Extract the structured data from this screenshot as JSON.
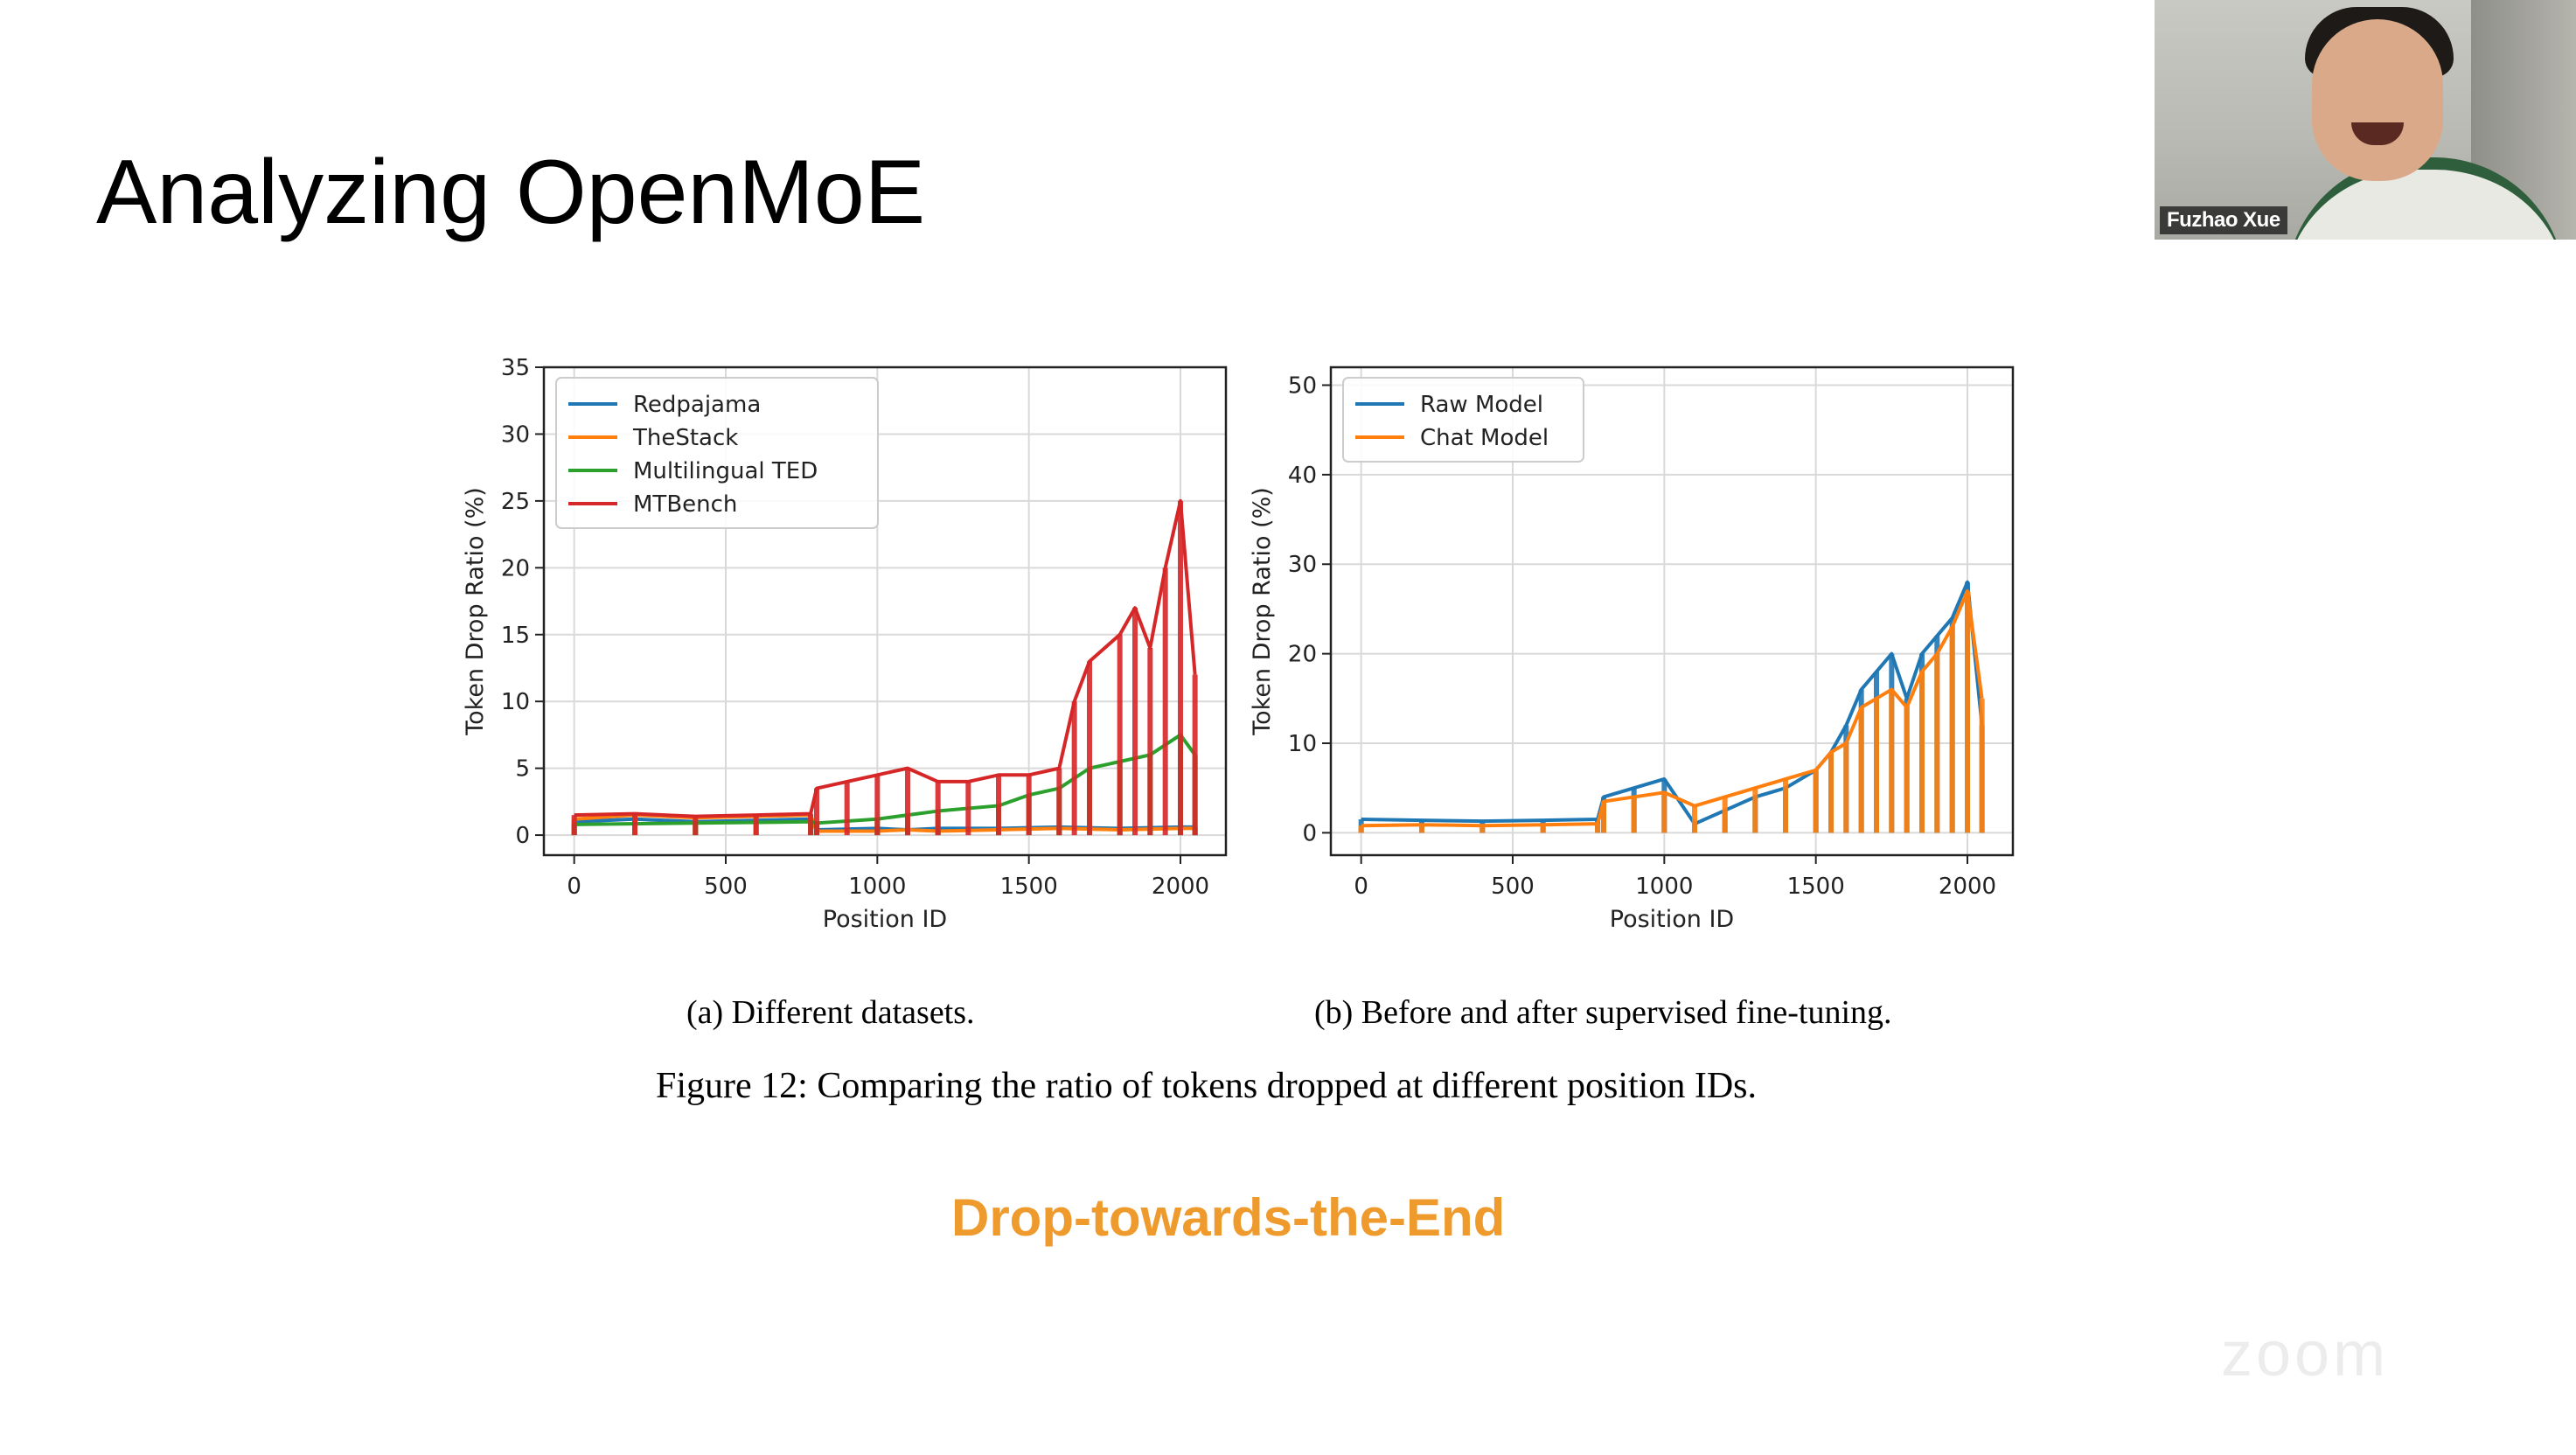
{
  "slide": {
    "title": "Analyzing OpenMoE",
    "highlight": "Drop-towards-the-End",
    "highlight_color": "#ee9a2c"
  },
  "figure": {
    "caption_a": "(a) Different datasets.",
    "caption_b": "(b) Before and after supervised fine-tuning.",
    "caption": "Figure 12: Comparing the ratio of tokens dropped at different position IDs."
  },
  "webcam": {
    "name": "Fuzhao Xue"
  },
  "watermark": "zoom",
  "chart_data": [
    {
      "id": "a",
      "type": "line",
      "xlabel": "Position ID",
      "ylabel": "Token Drop Ratio (%)",
      "xlim": [
        -100,
        2150
      ],
      "ylim": [
        -1.5,
        35
      ],
      "xticks": [
        0,
        500,
        1000,
        1500,
        2000
      ],
      "yticks": [
        0,
        5,
        10,
        15,
        20,
        25,
        30,
        35
      ],
      "grid": true,
      "legend": "top-left",
      "series": [
        {
          "name": "Redpajama",
          "color": "#1f77b4",
          "x": [
            0,
            200,
            400,
            600,
            780,
            800,
            1000,
            1100,
            1200,
            1400,
            1600,
            1800,
            2000,
            2048
          ],
          "y": [
            1.0,
            1.2,
            1.0,
            1.1,
            1.2,
            0.4,
            0.5,
            0.4,
            0.5,
            0.5,
            0.6,
            0.5,
            0.6,
            0.6
          ]
        },
        {
          "name": "TheStack",
          "color": "#ff7f0e",
          "x": [
            0,
            200,
            400,
            600,
            780,
            800,
            1000,
            1100,
            1200,
            1400,
            1600,
            1800,
            2000,
            2048
          ],
          "y": [
            1.2,
            1.5,
            1.3,
            1.4,
            1.5,
            0.3,
            0.3,
            0.4,
            0.3,
            0.4,
            0.5,
            0.4,
            0.5,
            0.5
          ]
        },
        {
          "name": "Multilingual TED",
          "color": "#2ca02c",
          "x": [
            0,
            400,
            780,
            800,
            1000,
            1100,
            1200,
            1400,
            1500,
            1600,
            1700,
            1800,
            1900,
            2000,
            2048
          ],
          "y": [
            0.8,
            0.9,
            1.0,
            0.9,
            1.2,
            1.5,
            1.8,
            2.2,
            3.0,
            3.5,
            5.0,
            5.5,
            6.0,
            7.5,
            6.0
          ]
        },
        {
          "name": "MTBench",
          "color": "#d62728",
          "x": [
            0,
            200,
            400,
            600,
            780,
            800,
            900,
            1000,
            1100,
            1200,
            1300,
            1400,
            1500,
            1600,
            1650,
            1700,
            1800,
            1850,
            1900,
            1950,
            2000,
            2048
          ],
          "y": [
            1.5,
            1.6,
            1.4,
            1.5,
            1.6,
            3.5,
            4.0,
            4.5,
            5.0,
            4.0,
            4.0,
            4.5,
            4.5,
            5.0,
            10.0,
            13.0,
            15.0,
            17.0,
            14.0,
            20.0,
            25.0,
            12.0
          ]
        }
      ]
    },
    {
      "id": "b",
      "type": "line",
      "xlabel": "Position ID",
      "ylabel": "Token Drop Ratio (%)",
      "xlim": [
        -100,
        2150
      ],
      "ylim": [
        -2.5,
        52
      ],
      "xticks": [
        0,
        500,
        1000,
        1500,
        2000
      ],
      "yticks": [
        0,
        10,
        20,
        30,
        40,
        50
      ],
      "grid": true,
      "legend": "top-left",
      "series": [
        {
          "name": "Raw Model",
          "color": "#1f77b4",
          "x": [
            0,
            200,
            400,
            600,
            780,
            800,
            900,
            1000,
            1100,
            1200,
            1300,
            1400,
            1500,
            1550,
            1600,
            1650,
            1700,
            1750,
            1800,
            1850,
            1900,
            1950,
            2000,
            2048
          ],
          "y": [
            1.5,
            1.4,
            1.3,
            1.4,
            1.5,
            4.0,
            5.0,
            6.0,
            1.0,
            2.5,
            4.0,
            5.0,
            7.0,
            9.0,
            12.0,
            16.0,
            18.0,
            20.0,
            15.0,
            20.0,
            22.0,
            24.0,
            28.0,
            12.0
          ]
        },
        {
          "name": "Chat Model",
          "color": "#ff7f0e",
          "x": [
            0,
            200,
            400,
            600,
            780,
            800,
            900,
            1000,
            1100,
            1200,
            1300,
            1400,
            1500,
            1550,
            1600,
            1650,
            1700,
            1750,
            1800,
            1850,
            1900,
            1950,
            2000,
            2048
          ],
          "y": [
            0.8,
            0.9,
            0.8,
            0.9,
            1.0,
            3.5,
            4.0,
            4.5,
            3.0,
            4.0,
            5.0,
            6.0,
            7.0,
            9.0,
            10.0,
            14.0,
            15.0,
            16.0,
            14.0,
            18.0,
            20.0,
            23.0,
            27.0,
            15.0
          ]
        }
      ]
    }
  ]
}
